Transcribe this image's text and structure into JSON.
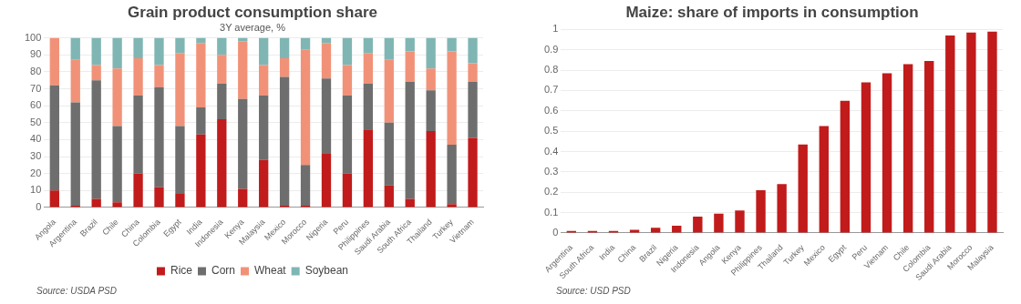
{
  "chart_data": [
    {
      "type": "bar",
      "title": "Grain product consumption share",
      "subtitle": "3Y average, %",
      "stacked": true,
      "legend": "bottom",
      "grid": "y",
      "ylim": [
        0,
        100
      ],
      "yticks": [
        0,
        10,
        20,
        30,
        40,
        50,
        60,
        70,
        80,
        90,
        100
      ],
      "categories": [
        "Angola",
        "Argentina",
        "Brazil",
        "Chile",
        "China",
        "Colombia",
        "Egypt",
        "India",
        "Indonesia",
        "Kenya",
        "Malaysia",
        "Mexico",
        "Morocco",
        "Nigeria",
        "Peru",
        "Philippines",
        "Saudi Arabia",
        "South Africa",
        "Thailand",
        "Turkey",
        "Vietnam"
      ],
      "series": [
        {
          "name": "Rice",
          "color": "#c21b1b",
          "values": [
            10,
            1,
            5,
            3,
            20,
            12,
            8,
            43,
            52,
            11,
            28,
            1,
            1,
            32,
            20,
            46,
            13,
            5,
            45,
            2,
            41
          ]
        },
        {
          "name": "Corn",
          "color": "#6e6e6e",
          "values": [
            62,
            61,
            70,
            45,
            46,
            59,
            40,
            16,
            21,
            53,
            38,
            76,
            24,
            44,
            46,
            27,
            37,
            69,
            24,
            35,
            33
          ]
        },
        {
          "name": "Wheat",
          "color": "#f19278",
          "values": [
            28,
            25,
            9,
            34,
            22,
            13,
            43,
            38,
            17,
            34,
            18,
            11,
            68,
            21,
            18,
            18,
            37,
            18,
            13,
            55,
            11
          ]
        },
        {
          "name": "Soybean",
          "color": "#7fb6b4",
          "values": [
            0,
            13,
            16,
            18,
            12,
            16,
            9,
            3,
            10,
            2,
            16,
            12,
            7,
            3,
            16,
            9,
            13,
            8,
            18,
            8,
            15
          ]
        }
      ],
      "annotations": [
        "Source: USDA PSD"
      ]
    },
    {
      "type": "bar",
      "title": "Maize: share of imports in consumption",
      "grid": "y",
      "ylim": [
        0,
        1
      ],
      "yticks": [
        0,
        0.1,
        0.2,
        0.3,
        0.4,
        0.5,
        0.6,
        0.7,
        0.8,
        0.9,
        1
      ],
      "categories": [
        "Argentina",
        "South Africa",
        "India",
        "China",
        "Brazil",
        "Nigeria",
        "Indonesia",
        "Angola",
        "Kenya",
        "Philippines",
        "Thailand",
        "Turkey",
        "Mexico",
        "Egypt",
        "Peru",
        "Vietnam",
        "Chile",
        "Colombia",
        "Saudi Arabia",
        "Morocco",
        "Malaysia"
      ],
      "series": [
        {
          "color": "#c21b1b",
          "values": [
            0.01,
            0.01,
            0.01,
            0.015,
            0.025,
            0.035,
            0.08,
            0.095,
            0.11,
            0.21,
            0.24,
            0.435,
            0.525,
            0.65,
            0.74,
            0.785,
            0.83,
            0.845,
            0.97,
            0.985,
            0.99
          ]
        }
      ],
      "annotations": [
        "Source: USD PSD"
      ]
    }
  ]
}
